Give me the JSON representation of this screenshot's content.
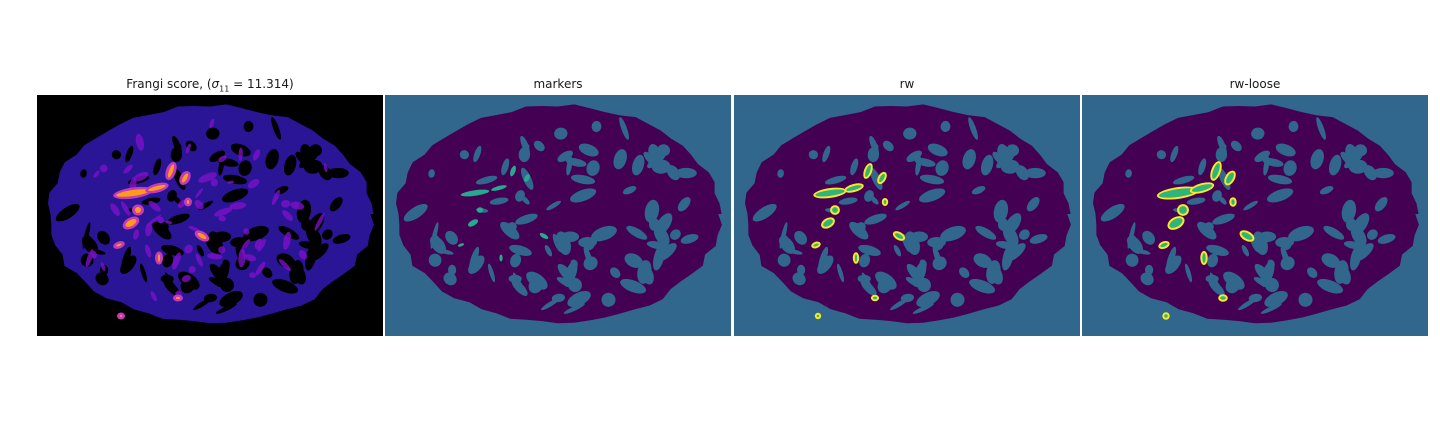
{
  "figure": {
    "panels": [
      {
        "title_prefix": "Frangi score, (",
        "title_sigma": "σ",
        "title_sub": "11",
        "title_suffix": " = 11.314)",
        "background": "#000000",
        "body_color": "#2a1597",
        "highlight_colors": [
          "#ff9a1a",
          "#c43ab8",
          "#7c10c8"
        ]
      },
      {
        "title": "markers",
        "background": "#31668d",
        "body_color": "#440154",
        "marker_color": "#26a98e"
      },
      {
        "title": "rw",
        "background": "#31668d",
        "body_color": "#440154",
        "segment_fill": "#2fb47c",
        "segment_edge": "#fde725"
      },
      {
        "title": "rw-loose",
        "background": "#31668d",
        "body_color": "#440154",
        "segment_fill": "#2fb47c",
        "segment_edge": "#fde725"
      }
    ]
  }
}
